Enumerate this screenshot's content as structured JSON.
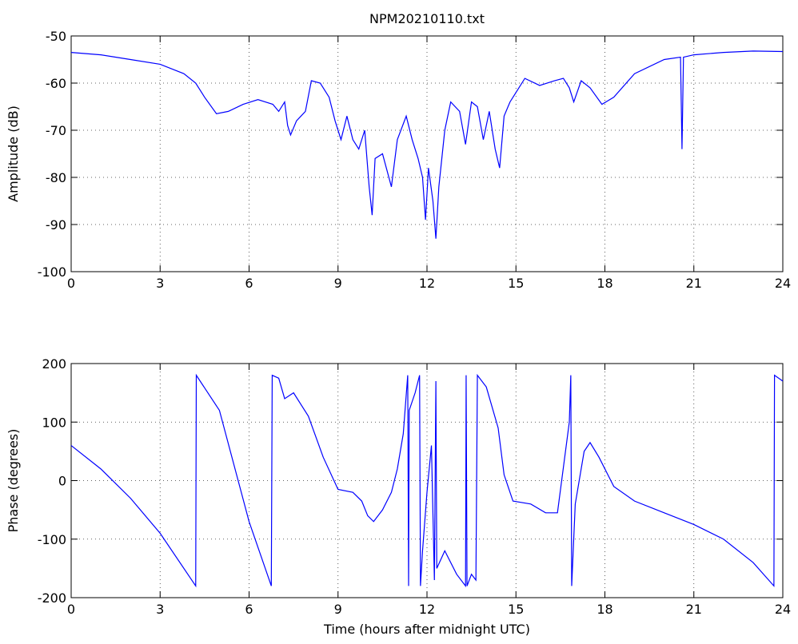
{
  "chart_data": [
    {
      "type": "line",
      "title": "NPM20210110.txt",
      "ylabel": "Amplitude (dB)",
      "color": "#0000ff",
      "grid": true,
      "xlim": [
        0,
        24
      ],
      "xticks": [
        0,
        3,
        6,
        9,
        12,
        15,
        18,
        21,
        24
      ],
      "ylim": [
        -100,
        -50
      ],
      "yticks": [
        -100,
        -90,
        -80,
        -70,
        -60,
        -50
      ],
      "x": [
        0,
        1,
        2,
        3,
        3.8,
        4.2,
        4.5,
        4.9,
        5.3,
        5.8,
        6.3,
        6.8,
        7.0,
        7.2,
        7.3,
        7.4,
        7.6,
        7.9,
        8.1,
        8.4,
        8.7,
        8.9,
        9.1,
        9.3,
        9.5,
        9.7,
        9.9,
        10.05,
        10.15,
        10.25,
        10.5,
        10.8,
        11.0,
        11.3,
        11.5,
        11.7,
        11.85,
        11.95,
        12.05,
        12.2,
        12.3,
        12.4,
        12.6,
        12.8,
        13.1,
        13.3,
        13.5,
        13.7,
        13.9,
        14.1,
        14.3,
        14.45,
        14.6,
        14.8,
        15.0,
        15.3,
        15.8,
        16.3,
        16.6,
        16.8,
        16.95,
        17.2,
        17.5,
        17.9,
        18.3,
        19,
        20,
        20.55,
        20.6,
        20.65,
        21,
        22,
        23,
        24
      ],
      "values": [
        -53.5,
        -54,
        -55,
        -56,
        -58,
        -60,
        -63,
        -66.5,
        -66,
        -64.5,
        -63.5,
        -64.5,
        -66,
        -64,
        -69,
        -71,
        -68,
        -66,
        -59.5,
        -60,
        -63,
        -68,
        -72,
        -67,
        -72,
        -74,
        -70,
        -82,
        -88,
        -76,
        -75,
        -82,
        -72,
        -67,
        -72,
        -76,
        -80,
        -89,
        -78,
        -85,
        -93,
        -82,
        -70,
        -64,
        -66,
        -73,
        -64,
        -65,
        -72,
        -66,
        -74,
        -78,
        -67,
        -64,
        -62,
        -59,
        -60.5,
        -59.5,
        -59,
        -61,
        -64,
        -59.5,
        -61,
        -64.5,
        -63,
        -58,
        -55,
        -54.5,
        -74,
        -54.5,
        -54,
        -53.5,
        -53.2,
        -53.3
      ]
    },
    {
      "type": "line",
      "ylabel": "Phase (degrees)",
      "xlabel": "Time (hours after midnight UTC)",
      "color": "#0000ff",
      "grid": true,
      "xlim": [
        0,
        24
      ],
      "xticks": [
        0,
        3,
        6,
        9,
        12,
        15,
        18,
        21,
        24
      ],
      "ylim": [
        -200,
        200
      ],
      "yticks": [
        -200,
        -100,
        0,
        100,
        200
      ],
      "x": [
        0,
        1,
        2,
        3,
        4.2,
        4.22,
        5,
        6,
        6.75,
        6.78,
        7.0,
        7.2,
        7.5,
        8,
        8.5,
        9,
        9.5,
        9.8,
        10,
        10.2,
        10.5,
        10.8,
        11.0,
        11.2,
        11.35,
        11.38,
        11.4,
        11.6,
        11.75,
        11.78,
        11.85,
        12.0,
        12.15,
        12.25,
        12.3,
        12.33,
        12.6,
        13.0,
        13.3,
        13.32,
        13.35,
        13.5,
        13.65,
        13.7,
        14.0,
        14.4,
        14.6,
        14.9,
        15.5,
        16,
        16.4,
        16.8,
        16.85,
        16.88,
        17.0,
        17.3,
        17.5,
        17.8,
        18.3,
        19,
        20,
        21,
        22,
        23,
        23.7,
        23.72,
        24
      ],
      "values": [
        60,
        20,
        -30,
        -90,
        -180,
        180,
        120,
        -70,
        -180,
        180,
        175,
        140,
        150,
        110,
        40,
        -15,
        -20,
        -35,
        -60,
        -70,
        -50,
        -20,
        20,
        80,
        180,
        -180,
        120,
        150,
        180,
        -180,
        -120,
        -20,
        60,
        -170,
        170,
        -150,
        -120,
        -160,
        -180,
        180,
        -180,
        -160,
        -170,
        180,
        160,
        90,
        10,
        -35,
        -40,
        -55,
        -55,
        100,
        180,
        -180,
        -40,
        50,
        65,
        40,
        -10,
        -35,
        -55,
        -75,
        -100,
        -140,
        -180,
        180,
        170
      ]
    }
  ]
}
